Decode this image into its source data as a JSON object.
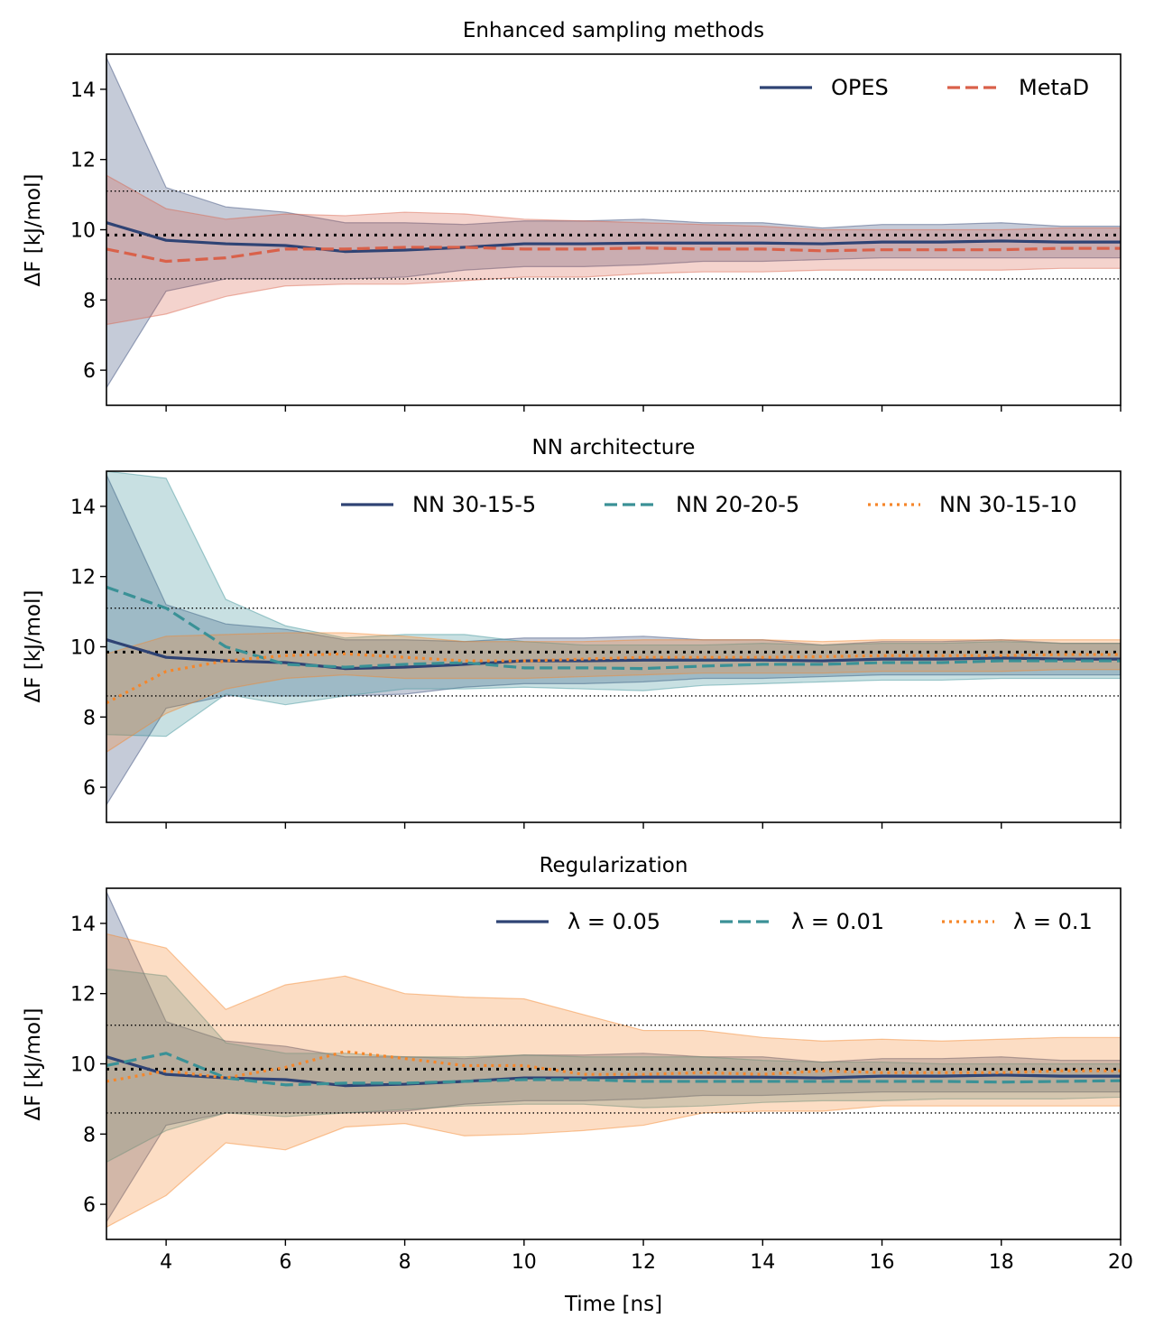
{
  "figure": {
    "xlabel": "Time [ns]",
    "ylabel": "ΔF [kJ/mol]",
    "xlim": [
      3,
      20
    ],
    "ylim": [
      5,
      15
    ],
    "xticks": [
      4,
      6,
      8,
      10,
      12,
      14,
      16,
      18,
      20
    ],
    "yticks": [
      6,
      8,
      10,
      12,
      14
    ],
    "reference": {
      "value": 9.85,
      "lower": 8.6,
      "upper": 11.1
    }
  },
  "chart_data": [
    {
      "type": "line",
      "title": "Enhanced sampling methods",
      "x": [
        3,
        4,
        5,
        6,
        7,
        8,
        9,
        10,
        11,
        12,
        13,
        14,
        15,
        16,
        17,
        18,
        19,
        20
      ],
      "series": [
        {
          "name": "OPES",
          "color": "#2f4374",
          "dash": "solid",
          "mean": [
            10.2,
            9.7,
            9.6,
            9.55,
            9.38,
            9.42,
            9.5,
            9.6,
            9.6,
            9.62,
            9.62,
            9.62,
            9.6,
            9.65,
            9.65,
            9.68,
            9.65,
            9.65
          ],
          "lower": [
            5.5,
            8.25,
            8.6,
            8.6,
            8.6,
            8.65,
            8.85,
            8.95,
            8.95,
            9.0,
            9.1,
            9.1,
            9.15,
            9.2,
            9.2,
            9.2,
            9.2,
            9.2
          ],
          "upper": [
            14.9,
            11.2,
            10.65,
            10.5,
            10.2,
            10.2,
            10.15,
            10.25,
            10.25,
            10.3,
            10.2,
            10.2,
            10.05,
            10.15,
            10.15,
            10.2,
            10.1,
            10.1
          ]
        },
        {
          "name": "MetaD",
          "color": "#d9614a",
          "dash": "dashed",
          "mean": [
            9.45,
            9.1,
            9.2,
            9.45,
            9.45,
            9.5,
            9.5,
            9.45,
            9.45,
            9.48,
            9.45,
            9.45,
            9.4,
            9.43,
            9.43,
            9.43,
            9.47,
            9.47
          ],
          "lower": [
            7.3,
            7.6,
            8.1,
            8.4,
            8.45,
            8.45,
            8.55,
            8.65,
            8.65,
            8.75,
            8.8,
            8.8,
            8.85,
            8.85,
            8.85,
            8.85,
            8.9,
            8.9
          ],
          "upper": [
            11.55,
            10.6,
            10.3,
            10.45,
            10.4,
            10.5,
            10.45,
            10.3,
            10.25,
            10.2,
            10.15,
            10.1,
            10.0,
            10.0,
            10.0,
            10.0,
            10.05,
            10.05
          ]
        }
      ]
    },
    {
      "type": "line",
      "title": "NN architecture",
      "x": [
        3,
        4,
        5,
        6,
        7,
        8,
        9,
        10,
        11,
        12,
        13,
        14,
        15,
        16,
        17,
        18,
        19,
        20
      ],
      "series": [
        {
          "name": "NN 30-15-5",
          "color": "#2f4374",
          "dash": "solid",
          "mean": [
            10.2,
            9.7,
            9.6,
            9.55,
            9.38,
            9.42,
            9.5,
            9.6,
            9.6,
            9.62,
            9.62,
            9.62,
            9.6,
            9.65,
            9.65,
            9.68,
            9.65,
            9.65
          ],
          "lower": [
            5.5,
            8.25,
            8.6,
            8.6,
            8.6,
            8.65,
            8.85,
            8.95,
            8.95,
            9.0,
            9.1,
            9.1,
            9.15,
            9.2,
            9.2,
            9.2,
            9.2,
            9.2
          ],
          "upper": [
            14.9,
            11.2,
            10.65,
            10.5,
            10.2,
            10.2,
            10.15,
            10.25,
            10.25,
            10.3,
            10.2,
            10.2,
            10.05,
            10.15,
            10.15,
            10.2,
            10.1,
            10.1
          ]
        },
        {
          "name": "NN 20-20-5",
          "color": "#3a9196",
          "dash": "dashed",
          "mean": [
            11.7,
            11.1,
            10.0,
            9.5,
            9.42,
            9.5,
            9.55,
            9.4,
            9.4,
            9.38,
            9.45,
            9.5,
            9.5,
            9.55,
            9.55,
            9.6,
            9.6,
            9.6
          ],
          "lower": [
            7.5,
            7.45,
            8.65,
            8.35,
            8.6,
            8.8,
            8.8,
            8.85,
            8.8,
            8.75,
            8.9,
            8.95,
            9.0,
            9.05,
            9.05,
            9.1,
            9.1,
            9.1
          ],
          "upper": [
            15.0,
            14.8,
            11.35,
            10.6,
            10.25,
            10.35,
            10.35,
            10.15,
            10.05,
            10.05,
            10.05,
            10.1,
            10.05,
            10.1,
            10.1,
            10.15,
            10.1,
            10.1
          ]
        },
        {
          "name": "NN 30-15-10",
          "color": "#f5862a",
          "dash": "dotted",
          "mean": [
            8.4,
            9.3,
            9.6,
            9.75,
            9.8,
            9.7,
            9.6,
            9.6,
            9.65,
            9.7,
            9.7,
            9.7,
            9.72,
            9.75,
            9.75,
            9.75,
            9.78,
            9.78
          ],
          "lower": [
            7.0,
            8.1,
            8.8,
            9.1,
            9.2,
            9.1,
            9.1,
            9.1,
            9.15,
            9.2,
            9.25,
            9.25,
            9.25,
            9.3,
            9.3,
            9.3,
            9.35,
            9.35
          ],
          "upper": [
            9.8,
            10.3,
            10.35,
            10.4,
            10.4,
            10.3,
            10.15,
            10.15,
            10.15,
            10.2,
            10.2,
            10.2,
            10.15,
            10.2,
            10.2,
            10.2,
            10.2,
            10.2
          ]
        }
      ]
    },
    {
      "type": "line",
      "title": "Regularization",
      "x": [
        3,
        4,
        5,
        6,
        7,
        8,
        9,
        10,
        11,
        12,
        13,
        14,
        15,
        16,
        17,
        18,
        19,
        20
      ],
      "series": [
        {
          "name": "λ = 0.05",
          "color": "#2f4374",
          "dash": "solid",
          "mean": [
            10.2,
            9.7,
            9.6,
            9.55,
            9.38,
            9.42,
            9.5,
            9.6,
            9.6,
            9.62,
            9.62,
            9.62,
            9.6,
            9.65,
            9.65,
            9.68,
            9.65,
            9.65
          ],
          "lower": [
            5.5,
            8.25,
            8.6,
            8.6,
            8.6,
            8.65,
            8.85,
            8.95,
            8.95,
            9.0,
            9.1,
            9.1,
            9.15,
            9.2,
            9.2,
            9.2,
            9.2,
            9.2
          ],
          "upper": [
            14.9,
            11.2,
            10.65,
            10.5,
            10.2,
            10.2,
            10.15,
            10.25,
            10.25,
            10.3,
            10.2,
            10.2,
            10.05,
            10.15,
            10.15,
            10.2,
            10.1,
            10.1
          ]
        },
        {
          "name": "λ = 0.01",
          "color": "#3a9196",
          "dash": "dashed",
          "mean": [
            9.95,
            10.3,
            9.6,
            9.4,
            9.45,
            9.45,
            9.5,
            9.55,
            9.55,
            9.5,
            9.5,
            9.5,
            9.5,
            9.5,
            9.5,
            9.48,
            9.5,
            9.52
          ],
          "lower": [
            7.2,
            8.1,
            8.6,
            8.5,
            8.6,
            8.7,
            8.8,
            8.85,
            8.85,
            8.75,
            8.8,
            8.9,
            8.95,
            8.95,
            9.0,
            9.0,
            9.0,
            9.05
          ],
          "upper": [
            12.7,
            12.5,
            10.6,
            10.3,
            10.3,
            10.2,
            10.2,
            10.25,
            10.2,
            10.2,
            10.2,
            10.1,
            10.05,
            10.05,
            10.0,
            10.0,
            10.0,
            10.0
          ]
        },
        {
          "name": "λ = 0.1",
          "color": "#f5862a",
          "dash": "dotted",
          "mean": [
            9.5,
            9.8,
            9.6,
            9.9,
            10.35,
            10.15,
            9.95,
            9.95,
            9.7,
            9.7,
            9.75,
            9.7,
            9.8,
            9.75,
            9.75,
            9.75,
            9.8,
            9.8
          ],
          "lower": [
            5.35,
            6.25,
            7.75,
            7.55,
            8.2,
            8.3,
            7.95,
            8.0,
            8.1,
            8.25,
            8.6,
            8.65,
            8.65,
            8.8,
            8.8,
            8.8,
            8.8,
            8.8
          ],
          "upper": [
            13.7,
            13.3,
            11.55,
            12.25,
            12.5,
            12.0,
            11.9,
            11.85,
            11.4,
            10.95,
            10.95,
            10.75,
            10.65,
            10.7,
            10.65,
            10.7,
            10.75,
            10.75
          ]
        }
      ]
    }
  ]
}
